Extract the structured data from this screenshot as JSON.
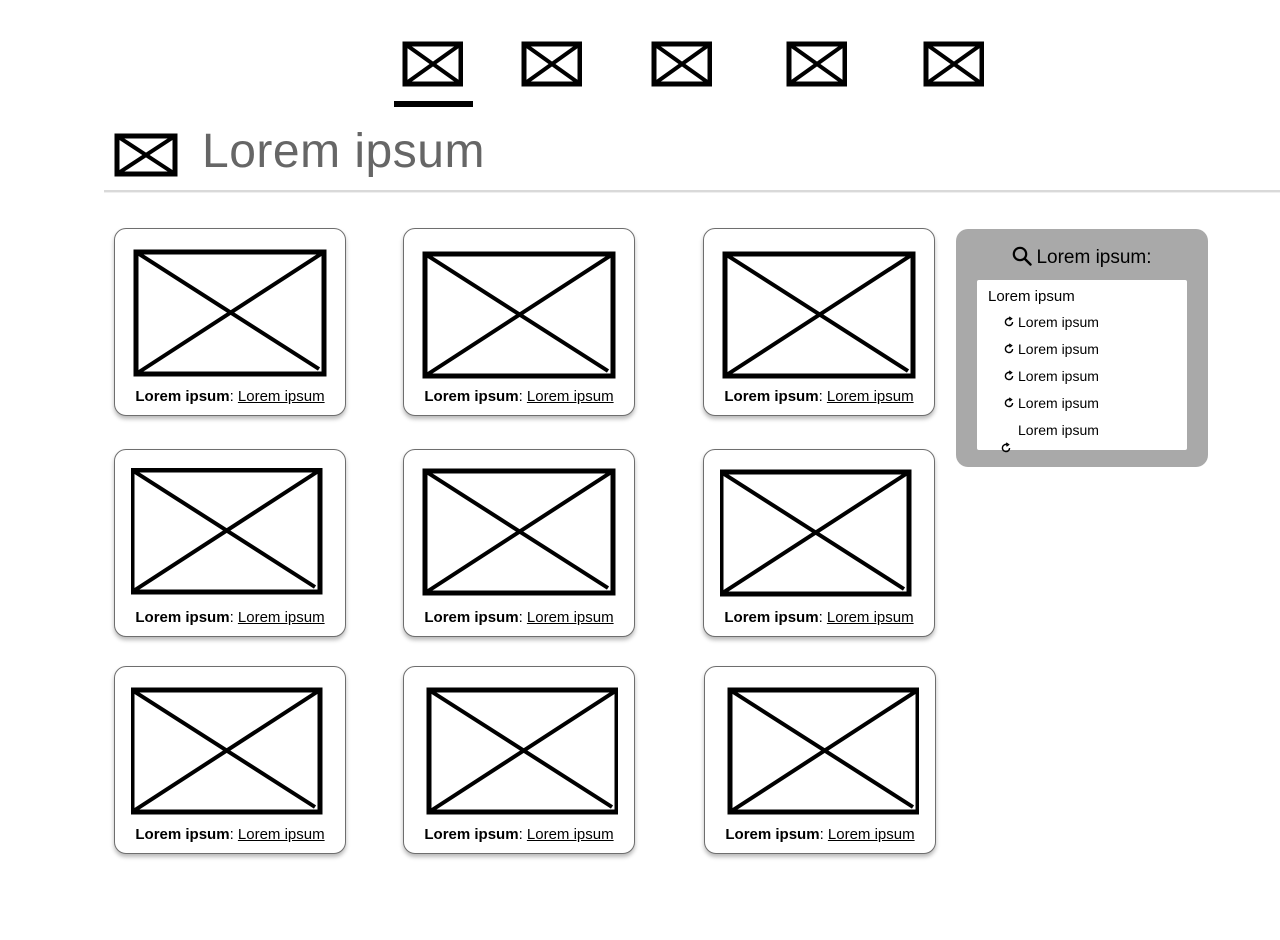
{
  "nav": {
    "items": [
      {
        "icon": "image-placeholder-icon",
        "active": true
      },
      {
        "icon": "image-placeholder-icon",
        "active": false
      },
      {
        "icon": "image-placeholder-icon",
        "active": false
      },
      {
        "icon": "image-placeholder-icon",
        "active": false
      },
      {
        "icon": "image-placeholder-icon",
        "active": false
      }
    ]
  },
  "header": {
    "icon": "image-placeholder-icon",
    "title": "Lorem ipsum"
  },
  "cards": [
    {
      "label": "Lorem ipsum",
      "link": "Lorem ipsum"
    },
    {
      "label": "Lorem ipsum",
      "link": "Lorem ipsum"
    },
    {
      "label": "Lorem ipsum",
      "link": "Lorem ipsum"
    },
    {
      "label": "Lorem ipsum",
      "link": "Lorem ipsum"
    },
    {
      "label": "Lorem ipsum",
      "link": "Lorem ipsum"
    },
    {
      "label": "Lorem ipsum",
      "link": "Lorem ipsum"
    },
    {
      "label": "Lorem ipsum",
      "link": "Lorem ipsum"
    },
    {
      "label": "Lorem ipsum",
      "link": "Lorem ipsum"
    },
    {
      "label": "Lorem ipsum",
      "link": "Lorem ipsum"
    }
  ],
  "search": {
    "heading": "Lorem ipsum:",
    "icon": "search-icon",
    "root": "Lorem ipsum",
    "items": [
      {
        "label": "Lorem ipsum",
        "icon": "refresh-icon"
      },
      {
        "label": "Lorem ipsum",
        "icon": "refresh-icon"
      },
      {
        "label": "Lorem ipsum",
        "icon": "refresh-icon"
      },
      {
        "label": "Lorem ipsum",
        "icon": "refresh-icon"
      },
      {
        "label": "Lorem ipsum",
        "icon": "refresh-icon"
      }
    ]
  },
  "colors": {
    "title": "#666666",
    "panel": "#a9a9a9",
    "card_border": "#6e6e6e",
    "ink": "#000000"
  }
}
